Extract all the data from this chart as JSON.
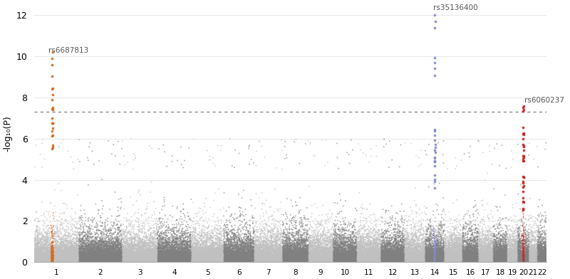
{
  "ylabel": "-log₁₀(P)",
  "ylim": [
    0,
    12.5
  ],
  "yticks": [
    0,
    2,
    4,
    6,
    8,
    10,
    12
  ],
  "genome_sig_line": 7.3,
  "chromosomes": [
    1,
    2,
    3,
    4,
    5,
    6,
    7,
    8,
    9,
    10,
    11,
    12,
    13,
    14,
    15,
    16,
    17,
    18,
    19,
    20,
    21,
    22
  ],
  "chr_colors_even": "#808080",
  "chr_colors_odd": "#c0c0c0",
  "highlight_chr1_color": "#d2691e",
  "highlight_chr14_color": "#8888cc",
  "highlight_chr20_color": "#cc2222",
  "sig_label1": "rs6687813",
  "sig_label2": "rs35136400",
  "sig_label3": "rs6060237",
  "background_color": "#ffffff",
  "dotted_line_color": "#888888",
  "seed": 42
}
